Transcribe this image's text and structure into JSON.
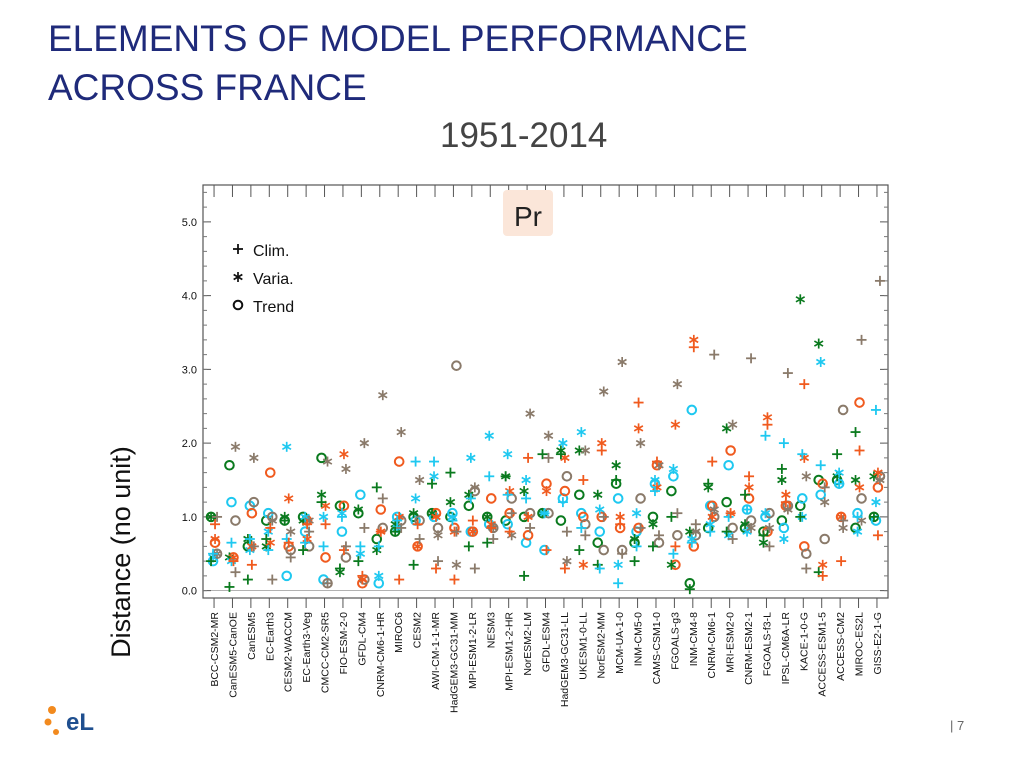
{
  "slide": {
    "title_line1": "ELEMENTS OF MODEL PERFORMANCE",
    "title_line2": "ACROSS FRANCE",
    "period": "1951-2014",
    "page_separator": "|",
    "page_number": "7",
    "logo_text": "eL"
  },
  "chart_data": {
    "type": "scatter",
    "variable_label": "Pr",
    "ylabel": "Distance (no unit)",
    "xlabel": "",
    "ylim": [
      -0.1,
      5.5
    ],
    "yticks": [
      "0.0",
      "1.0",
      "2.0",
      "3.0",
      "4.0",
      "5.0"
    ],
    "legend": {
      "placement": "top-left",
      "entries": [
        {
          "marker": "plus",
          "label": "Clim."
        },
        {
          "marker": "star",
          "label": "Varia."
        },
        {
          "marker": "circle",
          "label": "Trend"
        }
      ]
    },
    "members": [
      {
        "color": "#0a7a1e"
      },
      {
        "color": "#1ec8f0"
      },
      {
        "color": "#f05a1e"
      },
      {
        "color": "#8a7a6a"
      }
    ],
    "categories": [
      "BCC-CSM2-MR",
      "CanESM5-CanOE",
      "CanESM5",
      "EC-Earth3",
      "CESM2-WACCM",
      "EC-Earth3-Veg",
      "CMCC-CM2-SR5",
      "FIO-ESM-2-0",
      "GFDL-CM4",
      "CNRM-CM6-1-HR",
      "MIROC6",
      "CESM2",
      "AWI-CM-1-1-MR",
      "HadGEM3-GC31-MM",
      "MPI-ESM1-2-LR",
      "NESM3",
      "MPI-ESM1-2-HR",
      "NorESM2-LM",
      "GFDL-ESM4",
      "HadGEM3-GC31-LL",
      "UKESM1-0-LL",
      "NorESM2-MM",
      "MCM-UA-1-0",
      "INM-CM5-0",
      "CAMS-CSM1-0",
      "FGOALS-g3",
      "INM-CM4-8",
      "CNRM-CM6-1",
      "MRI-ESM2-0",
      "CNRM-ESM2-1",
      "FGOALS-f3-L",
      "IPSL-CM6A-LR",
      "KACE-1-0-G",
      "ACCESS-ESM1-5",
      "ACCESS-CM2",
      "MIROC-ES2L",
      "GISS-E2-1-G"
    ],
    "clim": [
      [
        0.4,
        0.5,
        0.9,
        1.0
      ],
      [
        0.05,
        0.65,
        0.4,
        0.25
      ],
      [
        0.15,
        0.7,
        0.35,
        0.6
      ],
      [
        0.7,
        0.55,
        0.85,
        0.15
      ],
      [
        0.95,
        0.7,
        0.65,
        0.45
      ],
      [
        0.55,
        0.65,
        0.9,
        0.8
      ],
      [
        1.2,
        0.6,
        0.9,
        0.1
      ],
      [
        0.3,
        1.0,
        0.55,
        0.6
      ],
      [
        0.4,
        0.6,
        0.2,
        0.85
      ],
      [
        1.4,
        0.6,
        0.8,
        1.25
      ],
      [
        0.8,
        0.95,
        0.15,
        0.85
      ],
      [
        0.35,
        1.75,
        0.9,
        0.7
      ],
      [
        1.45,
        1.75,
        0.3,
        0.4
      ],
      [
        1.6,
        0.95,
        0.15,
        0.8
      ],
      [
        0.6,
        1.25,
        0.95,
        0.3
      ],
      [
        0.65,
        1.55,
        0.85,
        0.7
      ],
      [
        1.55,
        1.3,
        0.8,
        1.05
      ],
      [
        0.2,
        1.25,
        1.8,
        0.85
      ],
      [
        1.85,
        1.05,
        0.55,
        1.8
      ],
      [
        1.85,
        1.2,
        0.3,
        0.8
      ],
      [
        0.55,
        0.85,
        1.5,
        0.75
      ],
      [
        0.35,
        0.3,
        1.9,
        1.0
      ],
      [
        1.5,
        0.1,
        0.9,
        0.5
      ],
      [
        0.4,
        0.6,
        2.55,
        0.85
      ],
      [
        0.6,
        1.35,
        1.75,
        0.75
      ],
      [
        1.0,
        0.5,
        0.6,
        1.05
      ],
      [
        0.02,
        0.65,
        3.3,
        0.9
      ],
      [
        1.45,
        0.8,
        1.75,
        3.2
      ],
      [
        0.8,
        1.0,
        1.05,
        0.7
      ],
      [
        1.3,
        1.1,
        1.55,
        3.15
      ],
      [
        0.75,
        2.1,
        2.25,
        0.6
      ],
      [
        1.65,
        2.0,
        1.2,
        2.95
      ],
      [
        1.0,
        1.85,
        2.8,
        0.3
      ],
      [
        0.25,
        1.7,
        0.2,
        1.4
      ],
      [
        1.85,
        1.45,
        0.4,
        0.95
      ],
      [
        2.15,
        1.0,
        1.9,
        3.4
      ],
      [
        1.0,
        2.45,
        0.75,
        4.2
      ]
    ],
    "varia": [
      [
        1.0,
        0.45,
        0.7,
        0.5
      ],
      [
        0.45,
        0.4,
        0.45,
        1.95
      ],
      [
        0.7,
        0.55,
        0.6,
        1.8
      ],
      [
        0.6,
        0.8,
        0.65,
        0.95
      ],
      [
        1.0,
        1.95,
        1.25,
        0.8
      ],
      [
        0.95,
        1.0,
        0.7,
        0.95
      ],
      [
        1.3,
        1.0,
        1.15,
        1.75
      ],
      [
        0.25,
        1.05,
        1.85,
        1.65
      ],
      [
        1.1,
        0.5,
        0.15,
        2.0
      ],
      [
        0.55,
        0.2,
        0.8,
        2.65
      ],
      [
        0.9,
        0.85,
        1.0,
        2.15
      ],
      [
        1.05,
        1.25,
        0.6,
        1.5
      ],
      [
        1.05,
        1.55,
        1.0,
        0.75
      ],
      [
        1.2,
        1.0,
        0.8,
        0.35
      ],
      [
        1.3,
        1.8,
        0.8,
        1.4
      ],
      [
        1.0,
        2.1,
        0.9,
        0.85
      ],
      [
        1.55,
        1.85,
        1.35,
        0.75
      ],
      [
        1.35,
        1.5,
        1.0,
        2.4
      ],
      [
        1.05,
        1.05,
        1.35,
        2.1
      ],
      [
        1.9,
        2.0,
        1.8,
        0.4
      ],
      [
        1.9,
        2.15,
        0.35,
        1.9
      ],
      [
        1.3,
        1.1,
        2.0,
        2.7
      ],
      [
        1.7,
        0.35,
        1.0,
        3.1
      ],
      [
        0.7,
        1.05,
        2.2,
        2.0
      ],
      [
        0.9,
        1.5,
        1.4,
        1.7
      ],
      [
        0.35,
        1.65,
        2.25,
        2.8
      ],
      [
        0.8,
        0.7,
        3.4,
        0.8
      ],
      [
        1.4,
        0.9,
        1.0,
        1.1
      ],
      [
        2.2,
        0.75,
        1.05,
        2.25
      ],
      [
        0.9,
        0.8,
        1.4,
        0.85
      ],
      [
        0.65,
        1.05,
        2.35,
        0.85
      ],
      [
        1.5,
        0.7,
        1.3,
        1.1
      ],
      [
        3.95,
        1.0,
        1.8,
        1.55
      ],
      [
        3.35,
        3.1,
        0.35,
        1.2
      ],
      [
        1.55,
        1.6,
        1.0,
        0.85
      ],
      [
        1.5,
        0.8,
        1.4,
        0.95
      ],
      [
        1.55,
        1.2,
        1.6,
        1.5
      ]
    ],
    "trend": [
      [
        1.0,
        0.4,
        0.65,
        0.5
      ],
      [
        1.7,
        1.2,
        0.45,
        0.95
      ],
      [
        0.6,
        1.15,
        1.05,
        1.2
      ],
      [
        0.95,
        1.05,
        1.6,
        1.0
      ],
      [
        0.95,
        0.2,
        0.6,
        0.55
      ],
      [
        1.0,
        0.8,
        0.95,
        0.6
      ],
      [
        1.8,
        0.15,
        0.45,
        0.1
      ],
      [
        1.15,
        0.8,
        1.15,
        0.45
      ],
      [
        1.05,
        1.3,
        0.1,
        0.15
      ],
      [
        0.7,
        0.1,
        1.1,
        0.85
      ],
      [
        0.8,
        1.0,
        1.75,
        0.95
      ],
      [
        1.0,
        0.95,
        0.6,
        0.95
      ],
      [
        1.05,
        1.0,
        1.05,
        0.85
      ],
      [
        1.0,
        1.05,
        0.85,
        3.05
      ],
      [
        1.15,
        0.8,
        0.8,
        1.35
      ],
      [
        1.0,
        0.9,
        1.25,
        0.85
      ],
      [
        0.95,
        0.9,
        1.05,
        1.25
      ],
      [
        1.0,
        0.65,
        0.75,
        1.05
      ],
      [
        1.05,
        0.55,
        1.45,
        1.05
      ],
      [
        0.95,
        1.25,
        1.35,
        1.55
      ],
      [
        1.3,
        1.05,
        1.0,
        0.9
      ],
      [
        0.65,
        0.8,
        1.0,
        0.55
      ],
      [
        1.45,
        1.25,
        0.85,
        0.55
      ],
      [
        0.65,
        0.8,
        0.85,
        1.25
      ],
      [
        1.0,
        1.45,
        1.7,
        0.65
      ],
      [
        1.35,
        1.55,
        0.35,
        0.75
      ],
      [
        0.1,
        2.45,
        0.6,
        0.75
      ],
      [
        0.85,
        1.15,
        1.15,
        1.0
      ],
      [
        1.2,
        1.7,
        1.9,
        0.85
      ],
      [
        0.85,
        1.1,
        1.25,
        0.95
      ],
      [
        0.8,
        1.0,
        0.8,
        1.05
      ],
      [
        0.95,
        0.85,
        1.15,
        1.15
      ],
      [
        1.15,
        1.25,
        0.6,
        0.5
      ],
      [
        1.5,
        1.3,
        1.45,
        0.7
      ],
      [
        1.5,
        1.45,
        1.0,
        2.45
      ],
      [
        0.85,
        1.05,
        2.55,
        1.25
      ],
      [
        1.0,
        0.95,
        1.4,
        1.55
      ]
    ]
  }
}
